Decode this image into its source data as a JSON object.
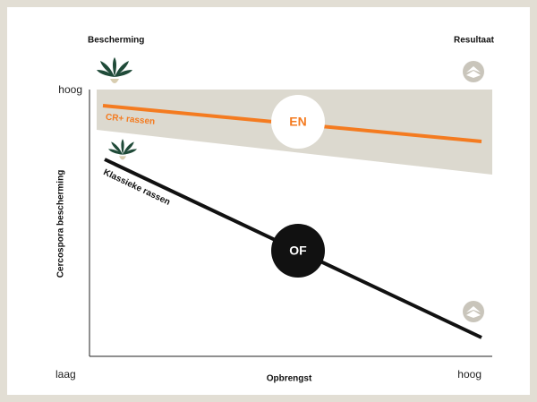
{
  "header": {
    "left": "Bescherming",
    "right": "Resultaat"
  },
  "y_axis": {
    "label": "Cercospora bescherming",
    "high": "hoog",
    "low": "laag"
  },
  "x_axis": {
    "label": "Opbrengst",
    "high": "hoog"
  },
  "lines": [
    {
      "label": "CR+ rassen",
      "badge": "EN"
    },
    {
      "label": "Klassieke rassen",
      "badge": "OF"
    }
  ]
}
